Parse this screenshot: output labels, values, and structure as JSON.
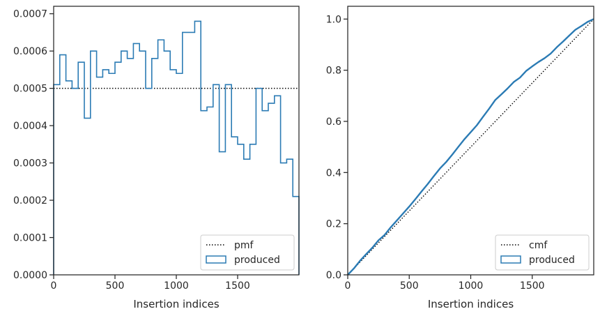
{
  "colors": {
    "series": "#2b7bb4",
    "reference": "#000000",
    "axes": "#262626",
    "legend_frame": "#cccccc"
  },
  "chart_data": [
    {
      "type": "histogram-step",
      "title": "",
      "xlabel": "Insertion indices",
      "ylabel": "",
      "xlim": [
        0,
        2000
      ],
      "ylim": [
        0,
        0.00072
      ],
      "xticks": [
        0,
        500,
        1000,
        1500
      ],
      "xtick_labels": [
        "0",
        "500",
        "1000",
        "1500"
      ],
      "yticks": [
        0,
        0.0001,
        0.0002,
        0.0003,
        0.0004,
        0.0005,
        0.0006,
        0.0007
      ],
      "ytick_labels": [
        "0.0000",
        "0.0001",
        "0.0002",
        "0.0003",
        "0.0004",
        "0.0005",
        "0.0006",
        "0.0007"
      ],
      "grid": false,
      "legend_position": "lower right",
      "bin_edges": [
        0,
        50,
        100,
        150,
        200,
        250,
        300,
        350,
        400,
        450,
        500,
        550,
        600,
        650,
        700,
        750,
        800,
        850,
        900,
        950,
        1000,
        1050,
        1100,
        1150,
        1200,
        1250,
        1300,
        1350,
        1400,
        1450,
        1500,
        1550,
        1600,
        1650,
        1700,
        1750,
        1800,
        1850,
        1900,
        1950,
        2000
      ],
      "series": [
        {
          "name": "pmf",
          "style": "dotted",
          "kind": "hline",
          "y": 0.0005
        },
        {
          "name": "produced",
          "style": "step",
          "values": [
            0.00051,
            0.00059,
            0.00052,
            0.0005,
            0.00057,
            0.00042,
            0.0006,
            0.00053,
            0.00055,
            0.00054,
            0.00057,
            0.0006,
            0.00058,
            0.00062,
            0.0006,
            0.0005,
            0.00058,
            0.00063,
            0.0006,
            0.00055,
            0.00054,
            0.00065,
            0.00065,
            0.00068,
            0.00044,
            0.00045,
            0.00051,
            0.00033,
            0.00051,
            0.00037,
            0.00035,
            0.00031,
            0.00035,
            0.0005,
            0.00044,
            0.00046,
            0.00048,
            0.0003,
            0.00031,
            0.00021
          ]
        }
      ]
    },
    {
      "type": "line",
      "title": "",
      "xlabel": "Insertion indices",
      "ylabel": "",
      "xlim": [
        0,
        2000
      ],
      "ylim": [
        0,
        1.05
      ],
      "xticks": [
        0,
        500,
        1000,
        1500
      ],
      "xtick_labels": [
        "0",
        "500",
        "1000",
        "1500"
      ],
      "yticks": [
        0,
        0.2,
        0.4,
        0.6,
        0.8,
        1.0
      ],
      "ytick_labels": [
        "0.0",
        "0.2",
        "0.4",
        "0.6",
        "0.8",
        "1.0"
      ],
      "grid": false,
      "legend_position": "lower right",
      "series": [
        {
          "name": "cmf",
          "style": "dotted",
          "x": [
            0,
            2000
          ],
          "y": [
            0,
            1.0
          ]
        },
        {
          "name": "produced",
          "style": "solid",
          "x": [
            0,
            50,
            100,
            150,
            200,
            250,
            300,
            350,
            400,
            450,
            500,
            550,
            600,
            650,
            700,
            750,
            800,
            850,
            900,
            950,
            1000,
            1050,
            1100,
            1150,
            1200,
            1250,
            1300,
            1350,
            1400,
            1450,
            1500,
            1550,
            1600,
            1650,
            1700,
            1750,
            1800,
            1850,
            1900,
            1950,
            2000
          ],
          "y": [
            0,
            0.025,
            0.055,
            0.081,
            0.106,
            0.135,
            0.156,
            0.186,
            0.213,
            0.24,
            0.267,
            0.296,
            0.326,
            0.355,
            0.386,
            0.416,
            0.441,
            0.47,
            0.501,
            0.531,
            0.558,
            0.585,
            0.618,
            0.65,
            0.684,
            0.706,
            0.729,
            0.754,
            0.771,
            0.797,
            0.815,
            0.832,
            0.847,
            0.865,
            0.89,
            0.912,
            0.935,
            0.958,
            0.973,
            0.989,
            1.0
          ]
        }
      ]
    }
  ]
}
